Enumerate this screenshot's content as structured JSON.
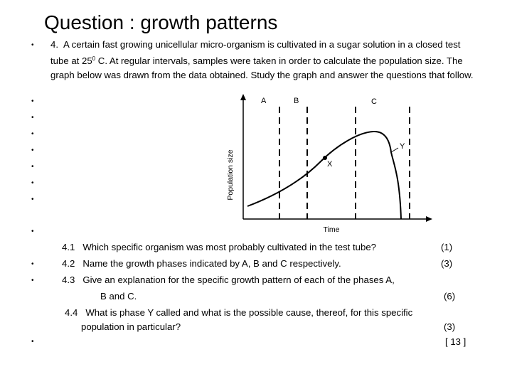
{
  "title": "Question : growth patterns",
  "intro": {
    "number": "4.",
    "text_before": "A certain fast growing unicellular micro-organism is cultivated in a sugar solution in a closed test tube at 25",
    "temp_superscript": "0",
    "text_after": " C.  At regular intervals, samples were taken in order to calculate the population size.  The graph below was drawn from the data obtained.  Study the graph and answer the questions that follow."
  },
  "graph": {
    "y_axis_label": "Population size",
    "x_axis_label": "Time",
    "phase_labels": [
      "A",
      "B",
      "C"
    ],
    "point_labels": [
      "X",
      "Y"
    ]
  },
  "questions": [
    {
      "number": "4.1",
      "text": "Which specific organism was most probably cultivated in the test tube?",
      "marks": "(1)"
    },
    {
      "number": "4.2",
      "text": "Name the growth phases indicated by A, B and C respectively.",
      "marks": "(3)"
    },
    {
      "number": "4.3",
      "text": "Give an explanation for the specific growth pattern of each of the phases A,",
      "continuation": "B and C.",
      "marks": "(6)"
    },
    {
      "number": "4.4",
      "text": "What is phase Y called and what is the possible cause, thereof, for this specific",
      "continuation": "population in particular?",
      "marks": "(3)"
    }
  ],
  "total": "[ 13 ]",
  "bullet_char": "•"
}
